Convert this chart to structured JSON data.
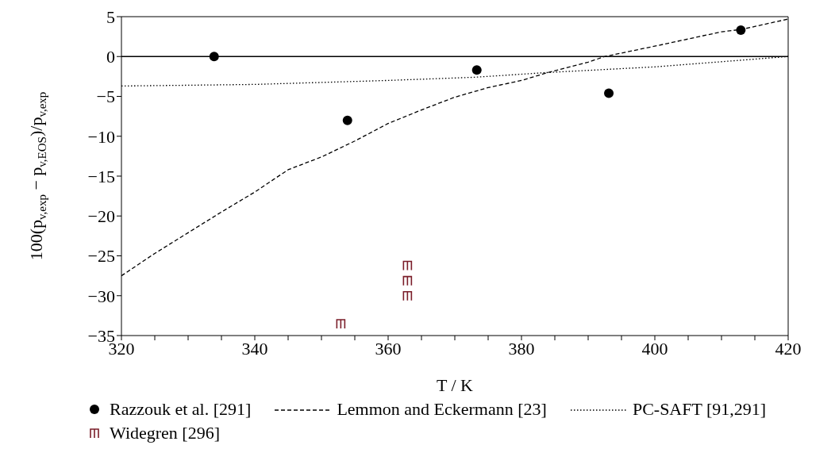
{
  "chart_data": {
    "type": "line",
    "xlabel": "T / K",
    "ylabel": "100(p$_{v,exp}$ − p$_{v,EOS}$)/p$_{v,exp}$",
    "xlim": [
      320,
      420
    ],
    "ylim": [
      -35,
      5
    ],
    "xticks": [
      320,
      {
        "value": 325,
        "label": null
      },
      {
        "value": 330,
        "label": null
      },
      {
        "value": 335,
        "label": null
      },
      340,
      {
        "value": 345,
        "label": null
      },
      {
        "value": 350,
        "label": null
      },
      {
        "value": 355,
        "label": null
      },
      360,
      {
        "value": 365,
        "label": null
      },
      {
        "value": 370,
        "label": null
      },
      {
        "value": 375,
        "label": null
      },
      380,
      {
        "value": 385,
        "label": null
      },
      {
        "value": 390,
        "label": null
      },
      {
        "value": 395,
        "label": null
      },
      400,
      {
        "value": 405,
        "label": null
      },
      {
        "value": 410,
        "label": null
      },
      {
        "value": 415,
        "label": null
      },
      420
    ],
    "yticks": [
      -35,
      -30,
      -25,
      -20,
      -15,
      -10,
      -5,
      0,
      5
    ],
    "legend": "bottom",
    "grid": false,
    "ref_lines": [
      {
        "axis": "y",
        "value": 0,
        "color": "#000000",
        "line_style": "solid"
      }
    ],
    "series": [
      {
        "name": "Razzouk et al.  [291]",
        "type": "scatter",
        "marker": "circle",
        "color": "#000000",
        "x": [
          333.9,
          353.9,
          373.3,
          393.1,
          412.9
        ],
        "values": [
          0.0,
          -8.0,
          -1.7,
          -4.6,
          3.3
        ]
      },
      {
        "name": "Lemmon and Eckermann [23]",
        "line_style": "dashed",
        "marker": "none",
        "color": "#000000",
        "x": [
          320,
          325,
          330,
          335,
          340,
          345,
          350,
          355,
          360,
          365,
          370,
          375,
          380,
          384,
          390,
          392.5,
          400,
          410,
          413,
          420
        ],
        "values": [
          -27.5,
          -24.7,
          -22.1,
          -19.5,
          -17.0,
          -14.2,
          -12.6,
          -10.6,
          -8.4,
          -6.7,
          -5.1,
          -3.9,
          -3.0,
          -2.0,
          -0.7,
          0.0,
          1.3,
          3.1,
          3.4,
          4.7
        ]
      },
      {
        "name": "PC-SAFT [91,291]",
        "line_style": "dotted",
        "marker": "none",
        "color": "#000000",
        "x": [
          320,
          340,
          360,
          373,
          384,
          400,
          420
        ],
        "values": [
          -3.7,
          -3.5,
          -3.0,
          -2.6,
          -2.0,
          -1.3,
          0.0
        ]
      },
      {
        "name": "Widegren [296]",
        "type": "scatter",
        "marker": "cross",
        "color": "#7b1e2a",
        "x": [
          352.9,
          362.9,
          362.9,
          362.9
        ],
        "values": [
          -33.5,
          -26.2,
          -28.1,
          -30.0
        ]
      }
    ]
  }
}
